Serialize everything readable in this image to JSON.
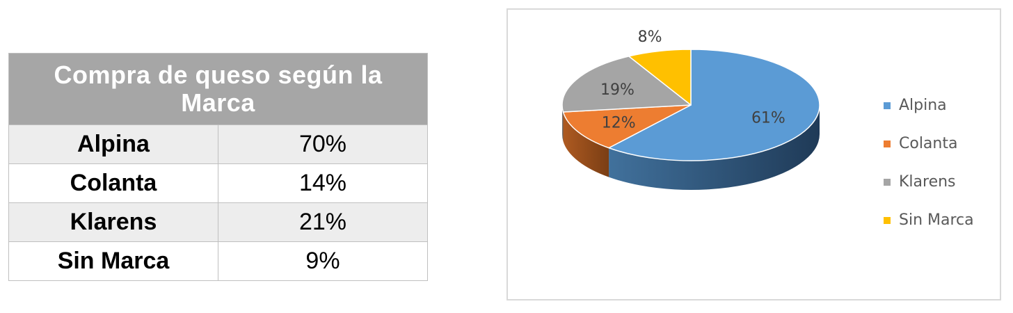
{
  "table": {
    "title": "Compra de queso según la Marca",
    "rows": [
      {
        "brand": "Alpina",
        "value": "70%"
      },
      {
        "brand": "Colanta",
        "value": "14%"
      },
      {
        "brand": "Klarens",
        "value": "21%"
      },
      {
        "brand": "Sin Marca",
        "value": "9%"
      }
    ]
  },
  "chart_data": {
    "type": "pie",
    "categories": [
      "Alpina",
      "Colanta",
      "Klarens",
      "Sin Marca"
    ],
    "values": [
      61,
      12,
      19,
      8
    ],
    "labels": [
      "61%",
      "12%",
      "19%",
      "8%"
    ],
    "colors": [
      "#5b9bd5",
      "#ed7d31",
      "#a5a5a5",
      "#ffc000"
    ],
    "legend": "right",
    "style": "3d"
  }
}
